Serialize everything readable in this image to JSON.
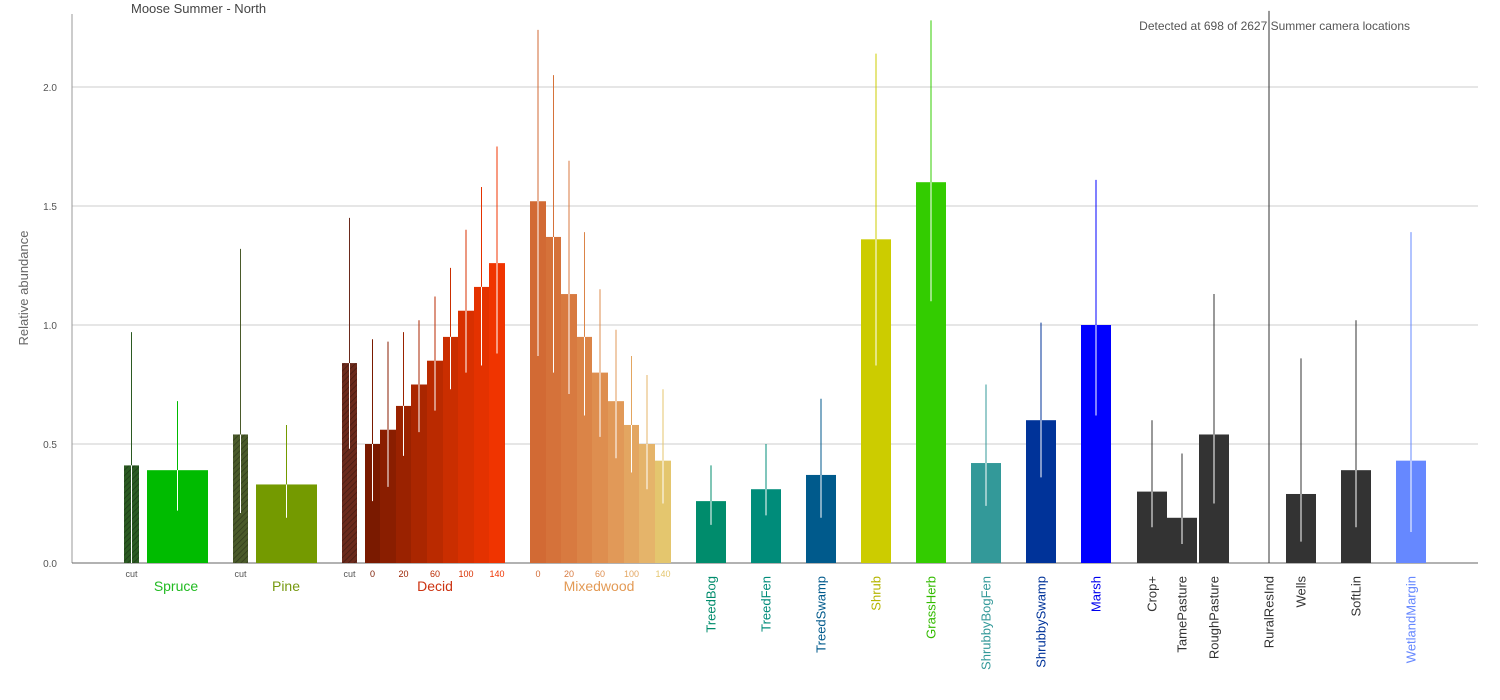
{
  "chart_data": {
    "type": "bar",
    "title": "Moose Summer - North",
    "subtitle": "Detected at 698 of 2627 Summer camera locations",
    "ylabel": "Relative abundance",
    "xlabel": "",
    "ylim": [
      0,
      2.32
    ],
    "yticks": [
      "0.0",
      "0.5",
      "1.0",
      "1.5",
      "2.0"
    ],
    "grid": true,
    "bars": [
      {
        "group": "Spruce",
        "tick": "cut",
        "value": 0.41,
        "upper": 0.97,
        "lower": 0.0,
        "color": "#2b5a22",
        "hatched": true
      },
      {
        "group": "Spruce",
        "tick": "",
        "value": 0.39,
        "upper": 0.68,
        "lower": 0.22,
        "color": "#00bb00"
      },
      {
        "group": "Pine",
        "tick": "cut",
        "value": 0.54,
        "upper": 1.32,
        "lower": 0.21,
        "color": "#4a5a2a",
        "hatched": true
      },
      {
        "group": "Pine",
        "tick": "",
        "value": 0.33,
        "upper": 0.58,
        "lower": 0.19,
        "color": "#749a00"
      },
      {
        "group": "Decid",
        "tick": "cut",
        "value": 0.84,
        "upper": 1.45,
        "lower": 0.48,
        "color": "#6b2a1c",
        "hatched": true
      },
      {
        "group": "Decid",
        "tick": "0",
        "value": 0.5,
        "upper": 0.94,
        "lower": 0.26,
        "color": "#7a1a00"
      },
      {
        "group": "Decid",
        "tick": "",
        "value": 0.56,
        "upper": 0.93,
        "lower": 0.32,
        "color": "#8a1e00"
      },
      {
        "group": "Decid",
        "tick": "20",
        "value": 0.66,
        "upper": 0.97,
        "lower": 0.45,
        "color": "#9a2200"
      },
      {
        "group": "Decid",
        "tick": "",
        "value": 0.75,
        "upper": 1.02,
        "lower": 0.55,
        "color": "#aa2600"
      },
      {
        "group": "Decid",
        "tick": "60",
        "value": 0.85,
        "upper": 1.12,
        "lower": 0.64,
        "color": "#ba2a00"
      },
      {
        "group": "Decid",
        "tick": "",
        "value": 0.95,
        "upper": 1.24,
        "lower": 0.73,
        "color": "#ca2e00"
      },
      {
        "group": "Decid",
        "tick": "100",
        "value": 1.06,
        "upper": 1.4,
        "lower": 0.8,
        "color": "#d83000"
      },
      {
        "group": "Decid",
        "tick": "",
        "value": 1.16,
        "upper": 1.58,
        "lower": 0.83,
        "color": "#e43200"
      },
      {
        "group": "Decid",
        "tick": "140",
        "value": 1.26,
        "upper": 1.75,
        "lower": 0.88,
        "color": "#f03400"
      },
      {
        "group": "Mixedwood",
        "tick": "0",
        "value": 1.52,
        "upper": 2.24,
        "lower": 0.87,
        "color": "#d26a34"
      },
      {
        "group": "Mixedwood",
        "tick": "",
        "value": 1.37,
        "upper": 2.05,
        "lower": 0.8,
        "color": "#d5723a"
      },
      {
        "group": "Mixedwood",
        "tick": "20",
        "value": 1.13,
        "upper": 1.69,
        "lower": 0.71,
        "color": "#d87a40"
      },
      {
        "group": "Mixedwood",
        "tick": "",
        "value": 0.95,
        "upper": 1.39,
        "lower": 0.62,
        "color": "#db8447"
      },
      {
        "group": "Mixedwood",
        "tick": "60",
        "value": 0.8,
        "upper": 1.15,
        "lower": 0.53,
        "color": "#de8e4f"
      },
      {
        "group": "Mixedwood",
        "tick": "",
        "value": 0.68,
        "upper": 0.98,
        "lower": 0.44,
        "color": "#e19958"
      },
      {
        "group": "Mixedwood",
        "tick": "100",
        "value": 0.58,
        "upper": 0.87,
        "lower": 0.38,
        "color": "#e3a661"
      },
      {
        "group": "Mixedwood",
        "tick": "",
        "value": 0.5,
        "upper": 0.79,
        "lower": 0.31,
        "color": "#e5b46a"
      },
      {
        "group": "Mixedwood",
        "tick": "140",
        "value": 0.43,
        "upper": 0.73,
        "lower": 0.25,
        "color": "#e4c66e"
      },
      {
        "group": "TreedBog",
        "tick": "",
        "value": 0.26,
        "upper": 0.41,
        "lower": 0.16,
        "color": "#008c6c"
      },
      {
        "group": "TreedFen",
        "tick": "",
        "value": 0.31,
        "upper": 0.5,
        "lower": 0.2,
        "color": "#008c7a"
      },
      {
        "group": "TreedSwamp",
        "tick": "",
        "value": 0.37,
        "upper": 0.69,
        "lower": 0.19,
        "color": "#005a8c"
      },
      {
        "group": "Shrub",
        "tick": "",
        "value": 1.36,
        "upper": 2.14,
        "lower": 0.83,
        "color": "#cccc00"
      },
      {
        "group": "GrassHerb",
        "tick": "",
        "value": 1.6,
        "upper": 2.28,
        "lower": 1.1,
        "color": "#33cc00"
      },
      {
        "group": "ShrubbyBogFen",
        "tick": "",
        "value": 0.42,
        "upper": 0.75,
        "lower": 0.24,
        "color": "#339999"
      },
      {
        "group": "ShrubbySwamp",
        "tick": "",
        "value": 0.6,
        "upper": 1.01,
        "lower": 0.36,
        "color": "#003399"
      },
      {
        "group": "Marsh",
        "tick": "",
        "value": 1.0,
        "upper": 1.61,
        "lower": 0.62,
        "color": "#0000ff"
      },
      {
        "group": "Crop+",
        "tick": "",
        "value": 0.3,
        "upper": 0.6,
        "lower": 0.15,
        "color": "#333333"
      },
      {
        "group": "TamePasture",
        "tick": "",
        "value": 0.19,
        "upper": 0.46,
        "lower": 0.08,
        "color": "#333333"
      },
      {
        "group": "RoughPasture",
        "tick": "",
        "value": 0.54,
        "upper": 1.13,
        "lower": 0.25,
        "color": "#333333"
      },
      {
        "group": "RuralResInd",
        "tick": "",
        "value": 0.0,
        "upper": 2.32,
        "lower": 0.0,
        "color": "#333333"
      },
      {
        "group": "Wells",
        "tick": "",
        "value": 0.29,
        "upper": 0.86,
        "lower": 0.09,
        "color": "#333333"
      },
      {
        "group": "SoftLin",
        "tick": "",
        "value": 0.39,
        "upper": 1.02,
        "lower": 0.15,
        "color": "#333333"
      },
      {
        "group": "WetlandMargin",
        "tick": "",
        "value": 0.43,
        "upper": 1.39,
        "lower": 0.13,
        "color": "#6688ff"
      }
    ],
    "group_labels": [
      {
        "label": "Spruce",
        "color": "#22bb22"
      },
      {
        "label": "Pine",
        "color": "#779911"
      },
      {
        "label": "Decid",
        "color": "#cc3311"
      },
      {
        "label": "Mixedwood",
        "color": "#e39a55"
      },
      {
        "label": "TreedBog",
        "color": "#008c6c"
      },
      {
        "label": "TreedFen",
        "color": "#008c7a"
      },
      {
        "label": "TreedSwamp",
        "color": "#005a8c"
      },
      {
        "label": "Shrub",
        "color": "#b5b500"
      },
      {
        "label": "GrassHerb",
        "color": "#33bb00"
      },
      {
        "label": "ShrubbyBogFen",
        "color": "#339999"
      },
      {
        "label": "ShrubbySwamp",
        "color": "#003399"
      },
      {
        "label": "Marsh",
        "color": "#0000ee"
      },
      {
        "label": "Crop+",
        "color": "#333333"
      },
      {
        "label": "TamePasture",
        "color": "#333333"
      },
      {
        "label": "RoughPasture",
        "color": "#333333"
      },
      {
        "label": "RuralResInd",
        "color": "#333333"
      },
      {
        "label": "Wells",
        "color": "#333333"
      },
      {
        "label": "SoftLin",
        "color": "#333333"
      },
      {
        "label": "WetlandMargin",
        "color": "#6688ff"
      }
    ]
  }
}
